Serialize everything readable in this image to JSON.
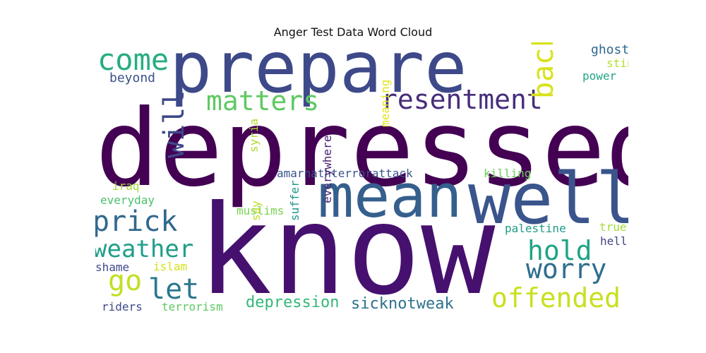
{
  "title": "Anger Test Data Word Cloud",
  "words": {
    "prepare": "prepare",
    "depressed": "depressed",
    "know": "know",
    "mean": "mean",
    "well": "well",
    "come": "come",
    "matters": "matters",
    "resentment": "resentment",
    "back": "back",
    "ghost": "ghost",
    "sting": "sting",
    "power": "power",
    "beyond": "beyond",
    "meaning": "meaning",
    "amarnath": "amarnathterrorattack",
    "killing": "killing",
    "iraq": "iraq",
    "syria": "syria",
    "everyday": "everyday",
    "will": "will",
    "prick": "prick",
    "muslims": "muslims",
    "palestine": "palestine",
    "true": "true",
    "hell": "hell",
    "weather": "weather",
    "say": "say",
    "hold": "hold",
    "worry": "worry",
    "shame": "shame",
    "islam": "islam",
    "go": "go",
    "let": "let",
    "suffer": "suffer",
    "everywhere": "everywhere",
    "offended": "offended",
    "riders": "riders",
    "terrorism": "terrorism",
    "depression": "depression",
    "sicknotweak": "sicknotweak"
  }
}
